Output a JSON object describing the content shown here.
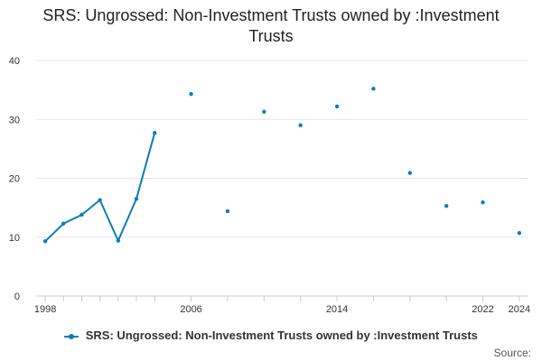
{
  "title": "SRS: Ungrossed: Non-Investment Trusts owned by :Investment Trusts",
  "source_label": "Source:",
  "colors": {
    "series": "#0e7db8",
    "grid": "#e6e6e6",
    "axis": "#cccccc",
    "text": "#333333"
  },
  "chart_data": {
    "type": "line",
    "x": [
      1998,
      1999,
      2000,
      2001,
      2002,
      2003,
      2004,
      2006,
      2008,
      2010,
      2012,
      2014,
      2016,
      2018,
      2020,
      2022,
      2024
    ],
    "series": [
      {
        "name": "SRS: Ungrossed: Non-Investment Trusts owned by :Investment Trusts",
        "values": [
          9.3,
          12.3,
          13.8,
          16.3,
          9.4,
          16.5,
          27.7,
          34.3,
          14.4,
          31.3,
          29.0,
          32.2,
          35.2,
          20.9,
          15.3,
          15.9,
          10.7
        ]
      }
    ],
    "line_segment_end_index": 6,
    "xlim": [
      1997.5,
      2024.5
    ],
    "ylim": [
      0,
      40
    ],
    "xticks": [
      1998,
      2006,
      2014,
      2022,
      2024
    ],
    "yticks": [
      0,
      10,
      20,
      30,
      40
    ],
    "grid": true,
    "legend_position": "bottom"
  }
}
